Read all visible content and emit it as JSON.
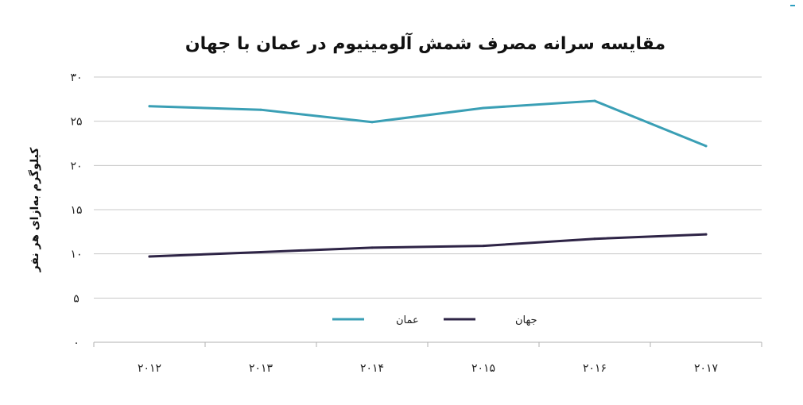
{
  "chart_data": {
    "type": "line",
    "title": "مقایسه سرانه مصرف شمش آلومینیوم در عمان با جهان",
    "ylabel": "کیلوگرم به‌ازای هر نفر",
    "xlabel": "",
    "categories": [
      "۲۰۱۲",
      "۲۰۱۳",
      "۲۰۱۴",
      "۲۰۱۵",
      "۲۰۱۶",
      "۲۰۱۷"
    ],
    "y_ticks": [
      {
        "value": 0,
        "label": "۰"
      },
      {
        "value": 5,
        "label": "۵"
      },
      {
        "value": 10,
        "label": "۱۰"
      },
      {
        "value": 15,
        "label": "۱۵"
      },
      {
        "value": 20,
        "label": "۲۰"
      },
      {
        "value": 25,
        "label": "۲۵"
      },
      {
        "value": 30,
        "label": "۳۰"
      }
    ],
    "ylim": [
      0,
      30
    ],
    "grid": true,
    "legend_position": "bottom",
    "series": [
      {
        "name": "عمان",
        "color": "#3a9fb5",
        "values": [
          26.7,
          26.3,
          24.9,
          26.5,
          27.3,
          22.2
        ]
      },
      {
        "name": "جهان",
        "color": "#2e2446",
        "values": [
          9.7,
          10.2,
          10.7,
          10.9,
          11.7,
          12.2
        ]
      }
    ]
  }
}
